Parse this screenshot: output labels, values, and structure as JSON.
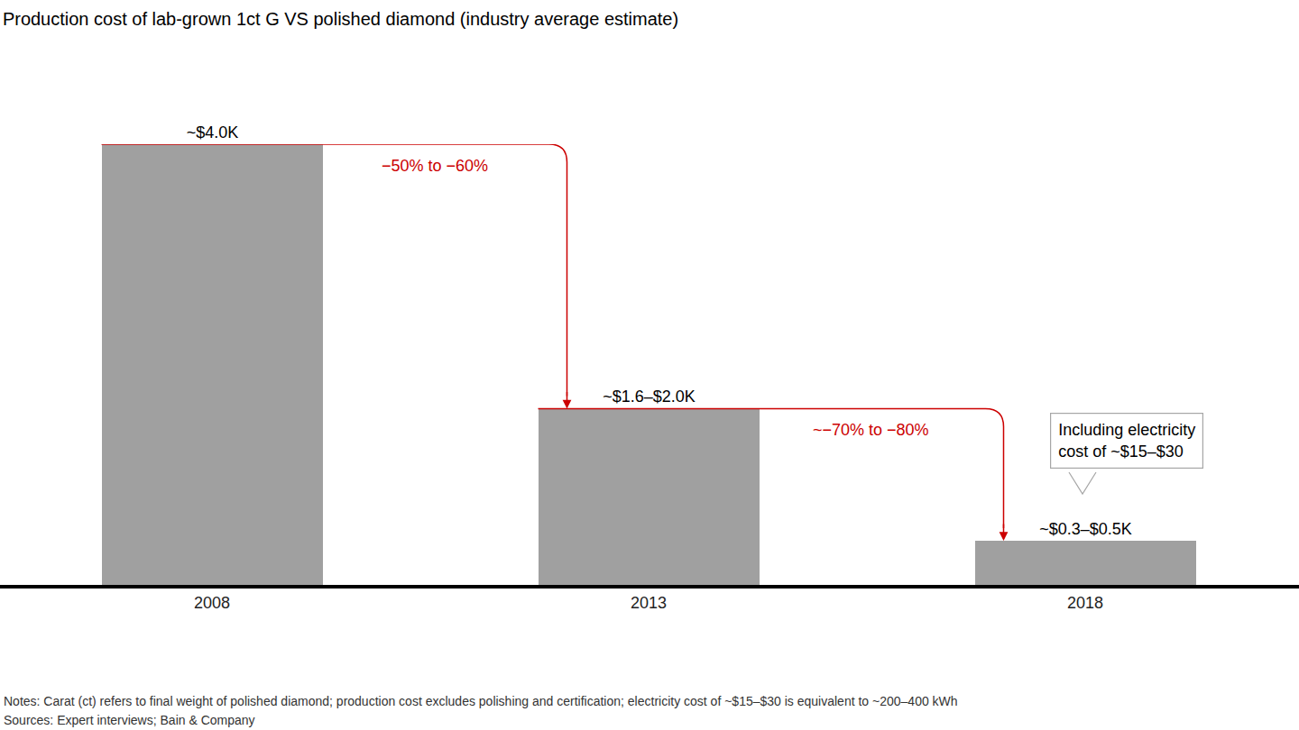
{
  "chart_data": {
    "type": "bar",
    "title": "Production cost of lab-grown 1ct G VS polished diamond (industry average estimate)",
    "categories": [
      "2008",
      "2013",
      "2018"
    ],
    "values": [
      4.0,
      1.6,
      0.4
    ],
    "value_labels": [
      "~$4.0K",
      "~$1.6–$2.0K",
      "~$0.3–$0.5K"
    ],
    "data_labels": true,
    "color": "#a0a0a0",
    "ylim": [
      0,
      4.0
    ],
    "tick_labels": "x",
    "grid": false,
    "changes": [
      {
        "from": "2008",
        "to": "2013",
        "label": "−50% to −60%"
      },
      {
        "from": "2013",
        "to": "2018",
        "label": "~−70% to −80%"
      }
    ],
    "callout": {
      "at": "2018",
      "lines": [
        "Including electricity",
        "cost of ~$15–$30"
      ]
    },
    "notes": "Notes: Carat (ct) refers to final weight of polished diamond; production cost excludes polishing and certification; electricity cost of ~$15–$30 is equivalent to ~200–400 kWh",
    "sources": "Sources: Expert interviews; Bain & Company"
  }
}
